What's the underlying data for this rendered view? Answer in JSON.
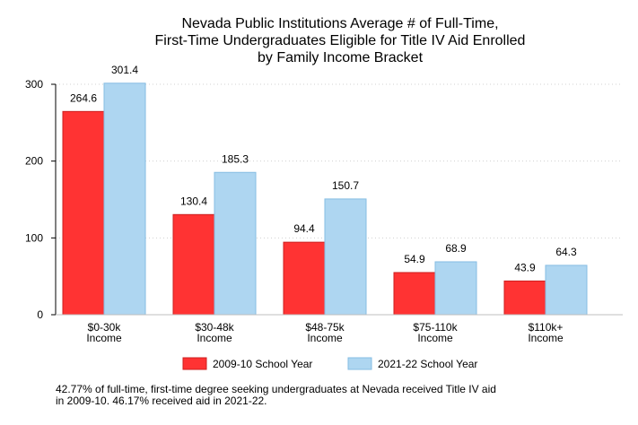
{
  "chart_data": {
    "type": "bar",
    "title_lines": [
      "Nevada Public Institutions Average # of Full-Time,",
      "First-Time Undergraduates Eligible for Title IV Aid Enrolled",
      "by Family Income Bracket"
    ],
    "categories": [
      [
        "$0-30k",
        "Income"
      ],
      [
        "$30-48k",
        "Income"
      ],
      [
        "$48-75k",
        "Income"
      ],
      [
        "$75-110k",
        "Income"
      ],
      [
        "$110k+",
        "Income"
      ]
    ],
    "series": [
      {
        "name": "2009-10 School Year",
        "values": [
          264.6,
          130.4,
          94.4,
          54.9,
          43.9
        ],
        "value_labels": [
          "264.6",
          "130.4",
          "94.4",
          "54.9",
          "43.9"
        ],
        "color": "#ff3333"
      },
      {
        "name": "2021-22 School Year",
        "values": [
          301.4,
          185.3,
          150.7,
          68.9,
          64.3
        ],
        "value_labels": [
          "301.4",
          "185.3",
          "150.7",
          "68.9",
          "64.3"
        ],
        "color": "#aed6f1"
      }
    ],
    "yticks": [
      0,
      100,
      200,
      300
    ],
    "ytick_labels": [
      "0",
      "100",
      "200",
      "300"
    ],
    "ylim": [
      0,
      300
    ],
    "grid": "horizontal dotted",
    "legend_position": "bottom"
  },
  "note_lines": [
    "42.77% of full-time, first-time degree seeking undergraduates at Nevada received Title IV aid",
    "in 2009-10. 46.17% received aid in 2021-22."
  ]
}
